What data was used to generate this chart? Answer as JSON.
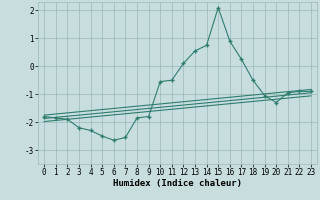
{
  "xlabel": "Humidex (Indice chaleur)",
  "x": [
    0,
    1,
    2,
    3,
    4,
    5,
    6,
    7,
    8,
    9,
    10,
    11,
    12,
    13,
    14,
    15,
    16,
    17,
    18,
    19,
    20,
    21,
    22,
    23
  ],
  "y_main": [
    -1.8,
    -1.85,
    -1.9,
    -2.2,
    -2.3,
    -2.5,
    -2.65,
    -2.55,
    -1.85,
    -1.8,
    -0.55,
    -0.5,
    0.1,
    0.55,
    0.75,
    2.1,
    0.9,
    0.25,
    -0.5,
    -1.05,
    -1.3,
    -0.95,
    -0.9,
    -0.9
  ],
  "y_line1": [
    -1.75,
    -1.71,
    -1.67,
    -1.63,
    -1.59,
    -1.55,
    -1.51,
    -1.47,
    -1.43,
    -1.39,
    -1.35,
    -1.31,
    -1.27,
    -1.23,
    -1.19,
    -1.15,
    -1.11,
    -1.07,
    -1.03,
    -0.99,
    -0.95,
    -0.91,
    -0.87,
    -0.83
  ],
  "y_line2": [
    -1.87,
    -1.83,
    -1.79,
    -1.75,
    -1.71,
    -1.67,
    -1.63,
    -1.59,
    -1.55,
    -1.51,
    -1.47,
    -1.43,
    -1.39,
    -1.35,
    -1.31,
    -1.27,
    -1.23,
    -1.19,
    -1.15,
    -1.11,
    -1.07,
    -1.03,
    -0.99,
    -0.95
  ],
  "y_line3": [
    -1.98,
    -1.94,
    -1.9,
    -1.86,
    -1.82,
    -1.78,
    -1.74,
    -1.7,
    -1.66,
    -1.62,
    -1.58,
    -1.54,
    -1.5,
    -1.46,
    -1.42,
    -1.38,
    -1.34,
    -1.3,
    -1.26,
    -1.22,
    -1.18,
    -1.14,
    -1.1,
    -1.06
  ],
  "color": "#2e7d6e",
  "bg_color": "#c8dede",
  "grid_color": "#9ababa",
  "ylim": [
    -3.5,
    2.3
  ],
  "yticks": [
    -3,
    -2,
    -1,
    0,
    1,
    2
  ],
  "xlim": [
    -0.5,
    23.5
  ],
  "xticks": [
    0,
    1,
    2,
    3,
    4,
    5,
    6,
    7,
    8,
    9,
    10,
    11,
    12,
    13,
    14,
    15,
    16,
    17,
    18,
    19,
    20,
    21,
    22,
    23
  ],
  "marker": "+",
  "markersize": 3.5,
  "markeredgewidth": 1.0,
  "linewidth": 0.8,
  "tick_fontsize": 5.5,
  "label_fontsize": 6.5,
  "label_fontweight": "bold"
}
